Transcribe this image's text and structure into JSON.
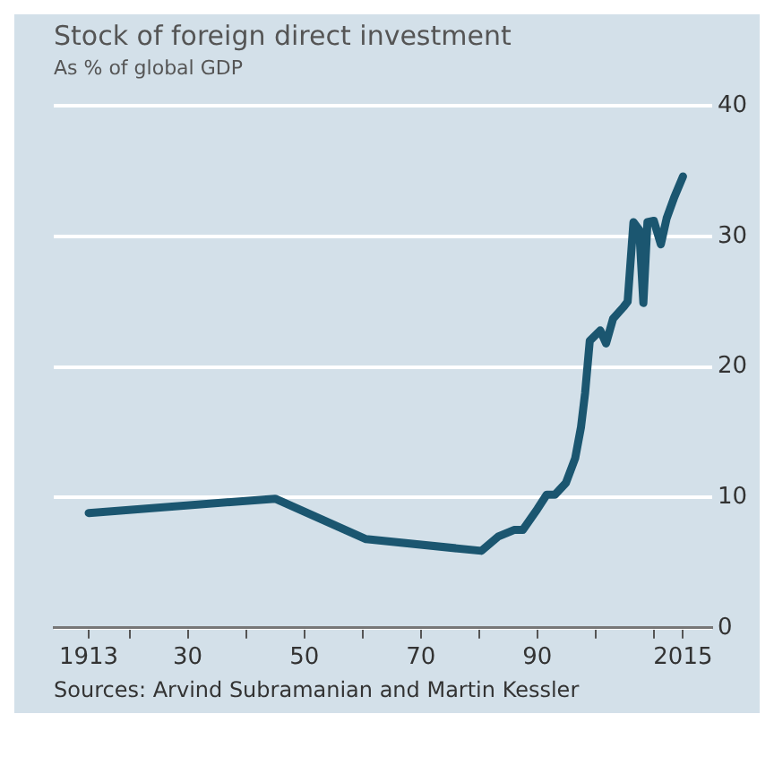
{
  "chart_data": {
    "type": "line",
    "title": "Stock of foreign direct investment",
    "subtitle": "As % of global GDP",
    "x": [
      1913,
      1945,
      1960.6,
      1980.4,
      1983.3,
      1986,
      1987.5,
      1990,
      1991.6,
      1993,
      1994.9,
      1996.5,
      1997.5,
      1998.2,
      1999,
      2000.8,
      2001.8,
      2003,
      2004.8,
      2005.5,
      2006.5,
      2007.5,
      2008.2,
      2008.9,
      2010,
      2011.2,
      2012.2,
      2013.5,
      2015
    ],
    "series": [
      {
        "color": "#1b5670",
        "values": [
          8.8,
          9.9,
          6.8,
          5.9,
          7.0,
          7.5,
          7.5,
          9.1,
          10.2,
          10.2,
          11.1,
          13,
          15.4,
          18,
          22,
          22.8,
          21.8,
          23.7,
          24.6,
          25,
          31.1,
          30.5,
          24.9,
          31.1,
          31.2,
          29.4,
          31.4,
          33,
          34.6
        ]
      }
    ],
    "xlim": [
      1907,
      2020
    ],
    "xticks": [
      1913,
      {
        "value": 1920,
        "label": null
      },
      {
        "value": 1930,
        "label": "30"
      },
      {
        "value": 1940,
        "label": null
      },
      {
        "value": 1950,
        "label": "50"
      },
      {
        "value": 1960,
        "label": null
      },
      {
        "value": 1970,
        "label": "70"
      },
      {
        "value": 1980,
        "label": null
      },
      {
        "value": 1990,
        "label": "90"
      },
      {
        "value": 2000,
        "label": null
      },
      {
        "value": 2010,
        "label": null
      },
      2015
    ],
    "ylim": [
      0,
      40
    ],
    "yticks": [
      0,
      10,
      20,
      30,
      40
    ],
    "grid": "y",
    "legend": false,
    "marker": "none",
    "line_style": "solid",
    "annotations": [
      "Sources: Arvind Subramanian and Martin Kessler"
    ]
  }
}
